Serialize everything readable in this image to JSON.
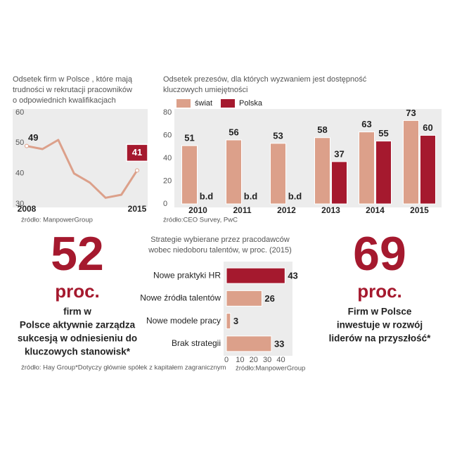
{
  "chart_data": [
    {
      "type": "line",
      "title": [
        "Odsetek firm w Polsce , które mają",
        "trudności w rekrutacji pracowników",
        "o odpowiednich kwalifikacjach"
      ],
      "x": [
        2008,
        2009,
        2010,
        2011,
        2012,
        2013,
        2014,
        2015
      ],
      "values": [
        49,
        48,
        51,
        40,
        37,
        32,
        33,
        41
      ],
      "value_labels": [
        "49",
        null,
        null,
        null,
        null,
        null,
        null,
        "41"
      ],
      "color": "#dca08a",
      "xlim": [
        2008,
        2015
      ],
      "xticks": [
        2008,
        2015
      ],
      "ylim": [
        30,
        60
      ],
      "yticks": [
        30,
        40,
        50,
        60
      ],
      "source": "źródło: ManpowerGroup"
    },
    {
      "type": "bar",
      "title": [
        "Odsetek prezesów, dla których wyzwaniem jest dostępność",
        "kluczowych umiejętności"
      ],
      "categories": [
        "2010",
        "2011",
        "2012",
        "2013",
        "2014",
        "2015"
      ],
      "series": [
        {
          "name": "świat",
          "color": "#dca08a",
          "values": [
            51,
            56,
            53,
            58,
            63,
            73
          ]
        },
        {
          "name": "Polska",
          "color": "#a5192e",
          "values": [
            null,
            null,
            null,
            37,
            55,
            60
          ],
          "value_labels": [
            "b.d",
            "b.d",
            "b.d",
            "37",
            "55",
            "60"
          ]
        }
      ],
      "ylim": [
        0,
        80
      ],
      "yticks": [
        0,
        20,
        40,
        60,
        80
      ],
      "source": "źródło:CEO Survey, PwC"
    },
    {
      "type": "hbar",
      "title": [
        "Strategie wybierane przez pracodawców",
        "wobec niedoboru talentów, w proc. (2015)"
      ],
      "categories": [
        "Nowe praktyki HR",
        "Nowe źródła talentów",
        "Nowe modele pracy",
        "Brak strategii"
      ],
      "values": [
        43,
        26,
        3,
        33
      ],
      "colors": [
        "#a5192e",
        "#dca08a",
        "#dca08a",
        "#dca08a"
      ],
      "xlim": [
        0,
        48
      ],
      "xticks": [
        0,
        10,
        20,
        30,
        40
      ],
      "source": "źródło:ManpowerGroup"
    }
  ],
  "stats": [
    {
      "value": 52,
      "unit": "proc.",
      "text": [
        "firm w",
        "Polsce aktywnie zarządza",
        "sukcesją w odniesieniu do",
        "kluczowych stanowisk*"
      ]
    },
    {
      "value": 69,
      "unit": "proc.",
      "text": [
        "Firm w Polsce",
        "inwestuje w rozwój",
        "liderów na przyszłość*"
      ]
    }
  ],
  "footnote": "źródło: Hay Group*Dotyczy głównie spółek z kapitałem zagranicznym"
}
